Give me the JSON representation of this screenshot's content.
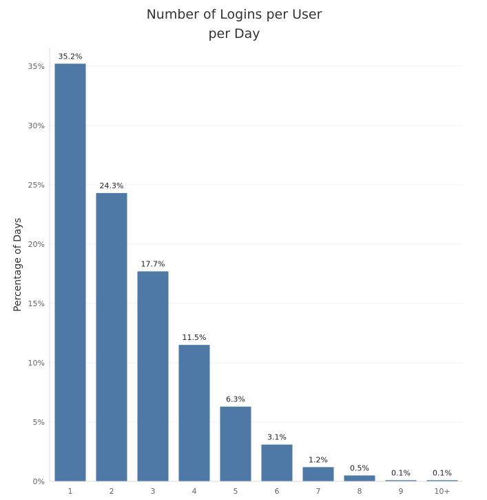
{
  "chart_data": {
    "type": "bar",
    "title_lines": [
      "Number of Logins per User",
      "per Day"
    ],
    "xlabel": "",
    "ylabel": "Percentage of Days",
    "categories": [
      "1",
      "2",
      "3",
      "4",
      "5",
      "6",
      "7",
      "8",
      "9",
      "10+"
    ],
    "values": [
      35.2,
      24.3,
      17.7,
      11.5,
      6.3,
      3.1,
      1.2,
      0.5,
      0.1,
      0.1
    ],
    "data_labels": [
      "35.2%",
      "24.3%",
      "17.7%",
      "11.5%",
      "6.3%",
      "3.1%",
      "1.2%",
      "0.5%",
      "0.1%",
      "0.1%"
    ],
    "ylim": [
      0,
      36.5
    ],
    "y_ticks": [
      0,
      5,
      10,
      15,
      20,
      25,
      30,
      35
    ],
    "y_tick_labels": [
      "0%",
      "5%",
      "10%",
      "15%",
      "20%",
      "25%",
      "30%",
      "35%"
    ],
    "grid": true,
    "bar_color": "#4e79a7"
  }
}
